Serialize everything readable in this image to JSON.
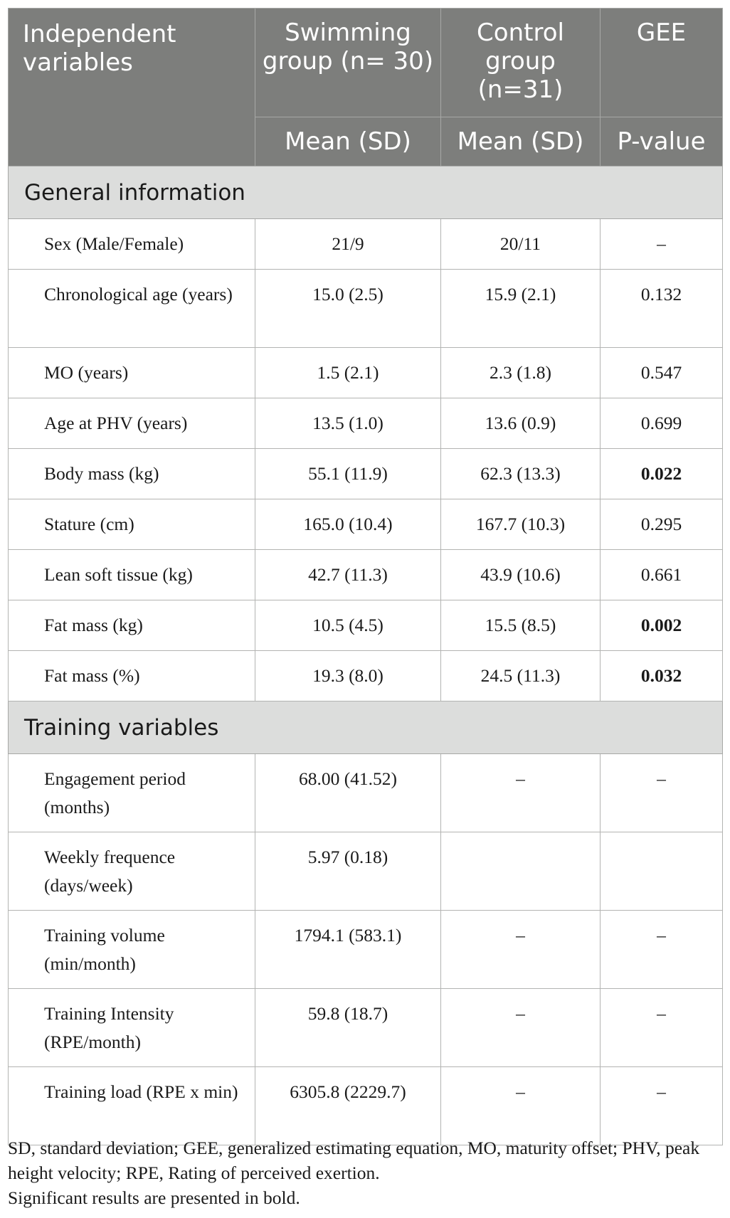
{
  "header": {
    "col1": "Independent variables",
    "col2": "Swimming group (n= 30)",
    "col3": "Control group (n=31)",
    "col4": "GEE",
    "sub2": "Mean (SD)",
    "sub3": "Mean (SD)",
    "sub4": "P-value"
  },
  "sections": [
    {
      "title": "General information",
      "rows": [
        {
          "label": "Sex (Male/Female)",
          "swim": "21/9",
          "control": "20/11",
          "p": "–",
          "bold": false
        },
        {
          "label": "Chronological age (years)",
          "swim": "15.0 (2.5)",
          "control": "15.9 (2.1)",
          "p": "0.132",
          "bold": false
        },
        {
          "label": "MO (years)",
          "swim": "1.5 (2.1)",
          "control": "2.3 (1.8)",
          "p": "0.547",
          "bold": false
        },
        {
          "label": "Age at PHV (years)",
          "swim": "13.5 (1.0)",
          "control": "13.6 (0.9)",
          "p": "0.699",
          "bold": false
        },
        {
          "label": "Body mass (kg)",
          "swim": "55.1 (11.9)",
          "control": "62.3 (13.3)",
          "p": "0.022",
          "bold": true
        },
        {
          "label": "Stature (cm)",
          "swim": "165.0 (10.4)",
          "control": "167.7 (10.3)",
          "p": "0.295",
          "bold": false
        },
        {
          "label": "Lean soft tissue (kg)",
          "swim": "42.7 (11.3)",
          "control": "43.9 (10.6)",
          "p": "0.661",
          "bold": false
        },
        {
          "label": "Fat mass (kg)",
          "swim": "10.5 (4.5)",
          "control": "15.5 (8.5)",
          "p": "0.002",
          "bold": true
        },
        {
          "label": "Fat mass (%)",
          "swim": "19.3 (8.0)",
          "control": "24.5 (11.3)",
          "p": "0.032",
          "bold": true
        }
      ]
    },
    {
      "title": "Training variables",
      "rows": [
        {
          "label": "Engagement period (months)",
          "swim": "68.00 (41.52)",
          "control": "–",
          "p": "–",
          "bold": false
        },
        {
          "label": "Weekly frequence (days/week)",
          "swim": "5.97 (0.18)",
          "control": "",
          "p": "",
          "bold": false
        },
        {
          "label": "Training volume (min/month)",
          "swim": "1794.1 (583.1)",
          "control": "–",
          "p": "–",
          "bold": false
        },
        {
          "label": "Training Intensity (RPE/month)",
          "swim": "59.8 (18.7)",
          "control": "–",
          "p": "–",
          "bold": false
        },
        {
          "label": "Training load (RPE x min)",
          "swim": "6305.8 (2229.7)",
          "control": "–",
          "p": "–",
          "bold": false
        }
      ]
    }
  ],
  "footnote": {
    "line1": "SD, standard deviation; GEE, generalized estimating equation, MO, maturity offset; PHV, peak height velocity; RPE, Rating of perceived exertion.",
    "line2": "Significant results are presented in bold."
  }
}
